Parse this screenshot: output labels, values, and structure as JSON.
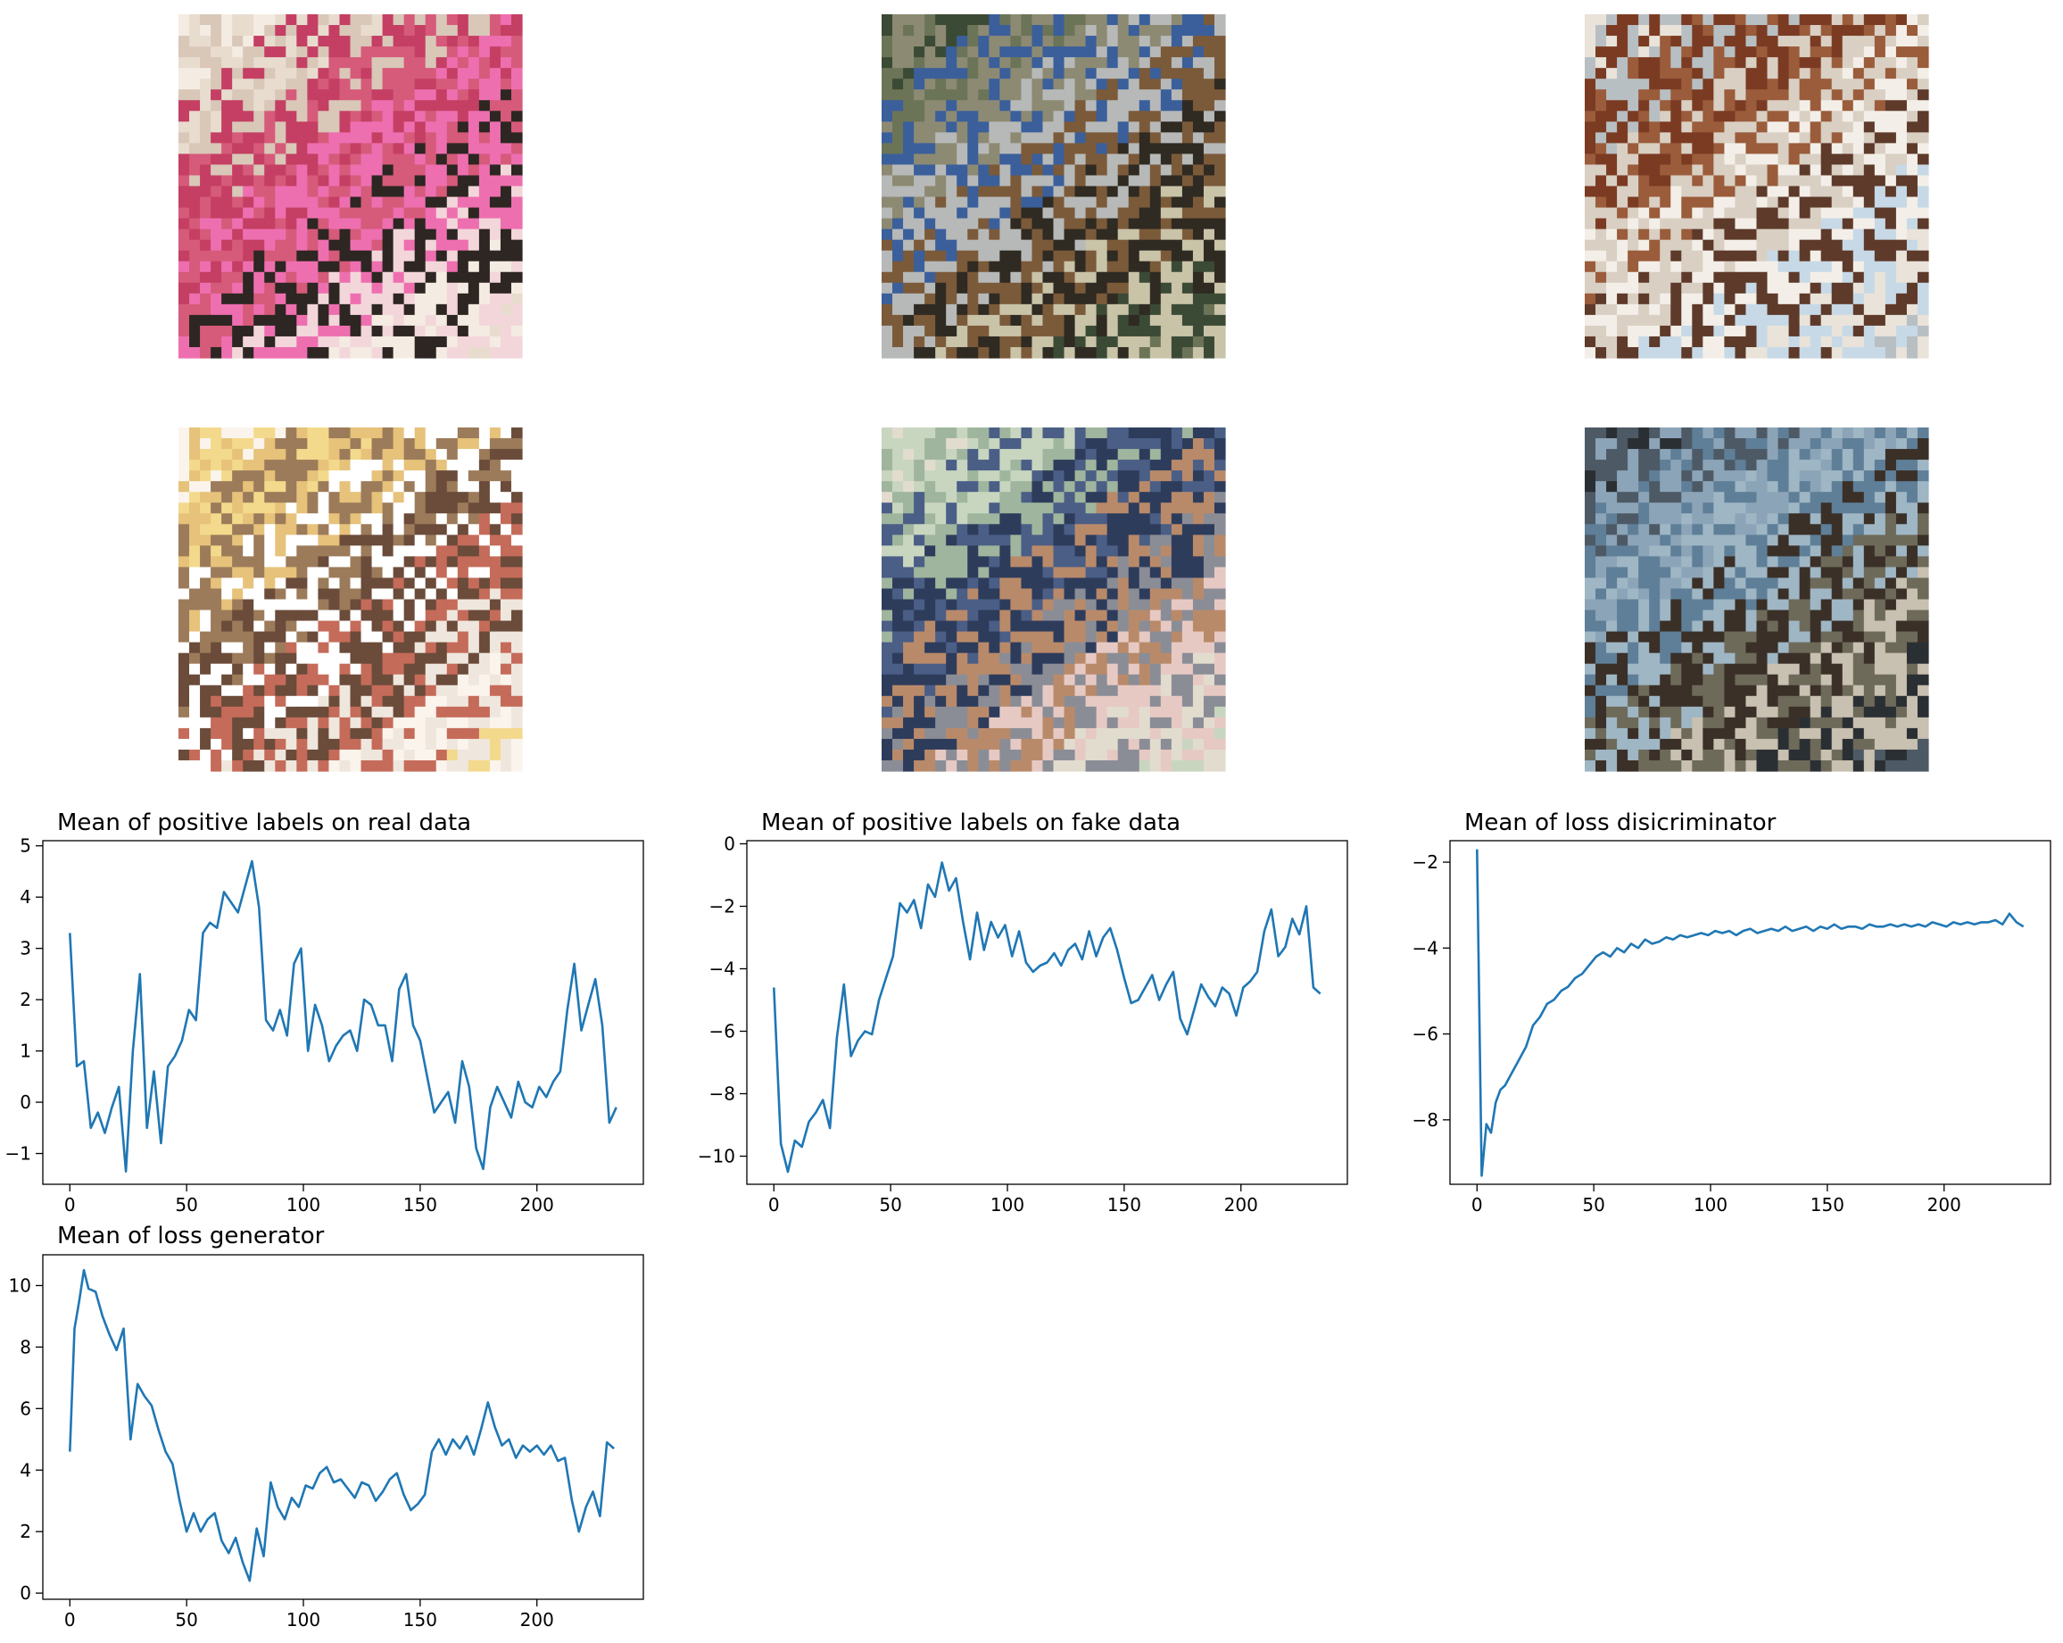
{
  "figure": {
    "images": [
      {
        "name": "generated-sample-1",
        "palette": [
          "#f4ece2",
          "#e8dccf",
          "#d9c7b8",
          "#c43f63",
          "#d65a7a",
          "#ee6fb0",
          "#2d2622",
          "#f3d6da"
        ]
      },
      {
        "name": "generated-sample-2",
        "palette": [
          "#3b4a35",
          "#6c7458",
          "#8d8a73",
          "#3a5f9b",
          "#b7b9b8",
          "#7b5a3a",
          "#2f2a22",
          "#c9c3a8"
        ]
      },
      {
        "name": "generated-sample-3",
        "palette": [
          "#e9e3da",
          "#b7bfc3",
          "#7b3b22",
          "#9a5c3b",
          "#d9cfc3",
          "#f3efe8",
          "#5e3a2a",
          "#c7d9e6"
        ]
      },
      {
        "name": "generated-sample-4",
        "palette": [
          "#fbf4ec",
          "#f3d98b",
          "#e6c27a",
          "#9c7b5a",
          "#ffffff",
          "#6b4b3a",
          "#c56b5a",
          "#efe7dd"
        ]
      },
      {
        "name": "generated-sample-5",
        "palette": [
          "#e2dccf",
          "#c8d6c0",
          "#9fb59d",
          "#4a5e86",
          "#2e3c5c",
          "#b98a6a",
          "#8a8d96",
          "#e7c9c4"
        ]
      },
      {
        "name": "generated-sample-6",
        "palette": [
          "#2a2f33",
          "#4d5a66",
          "#8ca4b8",
          "#5f7f98",
          "#9fb6c4",
          "#3a3028",
          "#6e6a5a",
          "#c8c0b0"
        ]
      }
    ]
  },
  "chart_data": [
    {
      "type": "line",
      "title": "Mean of positive labels on real data",
      "xlabel": "",
      "ylabel": "",
      "xlim": [
        0,
        234
      ],
      "ylim": [
        -1.6,
        5.1
      ],
      "xticks": [
        0,
        50,
        100,
        150,
        200
      ],
      "yticks": [
        -1,
        0,
        1,
        2,
        3,
        4,
        5
      ],
      "color": "#1f77b4",
      "series": [
        {
          "x": [
            0,
            3,
            6,
            9,
            12,
            15,
            18,
            21,
            24,
            27,
            30,
            33,
            36,
            39,
            42,
            45,
            48,
            51,
            54,
            57,
            60,
            63,
            66,
            69,
            72,
            75,
            78,
            81,
            84,
            87,
            90,
            93,
            96,
            99,
            102,
            105,
            108,
            111,
            114,
            117,
            120,
            123,
            126,
            129,
            132,
            135,
            138,
            141,
            144,
            147,
            150,
            153,
            156,
            159,
            162,
            165,
            168,
            171,
            174,
            177,
            180,
            183,
            186,
            189,
            192,
            195,
            198,
            201,
            204,
            207,
            210,
            213,
            216,
            219,
            222,
            225,
            228,
            231,
            234
          ],
          "y": [
            3.3,
            0.7,
            0.8,
            -0.5,
            -0.2,
            -0.6,
            -0.1,
            0.3,
            -1.35,
            1.0,
            2.5,
            -0.5,
            0.6,
            -0.8,
            0.7,
            0.9,
            1.2,
            1.8,
            1.6,
            3.3,
            3.5,
            3.4,
            4.1,
            3.9,
            3.7,
            4.2,
            4.7,
            3.8,
            1.6,
            1.4,
            1.8,
            1.3,
            2.7,
            3.0,
            1.0,
            1.9,
            1.5,
            0.8,
            1.1,
            1.3,
            1.4,
            1.0,
            2.0,
            1.9,
            1.5,
            1.5,
            0.8,
            2.2,
            2.5,
            1.5,
            1.2,
            0.5,
            -0.2,
            0.0,
            0.2,
            -0.4,
            0.8,
            0.3,
            -0.9,
            -1.3,
            -0.1,
            0.3,
            0.0,
            -0.3,
            0.4,
            0.0,
            -0.1,
            0.3,
            0.1,
            0.4,
            0.6,
            1.8,
            2.7,
            1.4,
            1.9,
            2.4,
            1.5,
            -0.4,
            -0.1
          ]
        }
      ]
    },
    {
      "type": "line",
      "title": "Mean of positive labels on fake data",
      "xlabel": "",
      "ylabel": "",
      "xlim": [
        0,
        234
      ],
      "ylim": [
        -10.9,
        0.1
      ],
      "xticks": [
        0,
        50,
        100,
        150,
        200
      ],
      "yticks": [
        -10,
        -8,
        -6,
        -4,
        -2,
        0
      ],
      "color": "#1f77b4",
      "series": [
        {
          "x": [
            0,
            3,
            6,
            9,
            12,
            15,
            18,
            21,
            24,
            27,
            30,
            33,
            36,
            39,
            42,
            45,
            48,
            51,
            54,
            57,
            60,
            63,
            66,
            69,
            72,
            75,
            78,
            81,
            84,
            87,
            90,
            93,
            96,
            99,
            102,
            105,
            108,
            111,
            114,
            117,
            120,
            123,
            126,
            129,
            132,
            135,
            138,
            141,
            144,
            147,
            150,
            153,
            156,
            159,
            162,
            165,
            168,
            171,
            174,
            177,
            180,
            183,
            186,
            189,
            192,
            195,
            198,
            201,
            204,
            207,
            210,
            213,
            216,
            219,
            222,
            225,
            228,
            231,
            234
          ],
          "y": [
            -4.6,
            -9.6,
            -10.5,
            -9.5,
            -9.7,
            -8.9,
            -8.6,
            -8.2,
            -9.1,
            -6.2,
            -4.5,
            -6.8,
            -6.3,
            -6.0,
            -6.1,
            -5.0,
            -4.3,
            -3.6,
            -1.9,
            -2.2,
            -1.8,
            -2.7,
            -1.3,
            -1.7,
            -0.6,
            -1.5,
            -1.1,
            -2.5,
            -3.7,
            -2.2,
            -3.4,
            -2.5,
            -3.0,
            -2.6,
            -3.6,
            -2.8,
            -3.8,
            -4.1,
            -3.9,
            -3.8,
            -3.5,
            -3.9,
            -3.4,
            -3.2,
            -3.7,
            -2.8,
            -3.6,
            -3.0,
            -2.7,
            -3.4,
            -4.3,
            -5.1,
            -5.0,
            -4.6,
            -4.2,
            -5.0,
            -4.5,
            -4.1,
            -5.6,
            -6.1,
            -5.3,
            -4.5,
            -4.9,
            -5.2,
            -4.6,
            -4.8,
            -5.5,
            -4.6,
            -4.4,
            -4.1,
            -2.8,
            -2.1,
            -3.6,
            -3.3,
            -2.4,
            -2.9,
            -2.0,
            -4.6,
            -4.8
          ]
        }
      ]
    },
    {
      "type": "line",
      "title": "Mean of loss disicriminator",
      "xlabel": "",
      "ylabel": "",
      "xlim": [
        0,
        234
      ],
      "ylim": [
        -9.5,
        -1.5
      ],
      "xticks": [
        0,
        50,
        100,
        150,
        200
      ],
      "yticks": [
        -8,
        -6,
        -4,
        -2
      ],
      "color": "#1f77b4",
      "series": [
        {
          "x": [
            0,
            2,
            4,
            6,
            8,
            10,
            12,
            15,
            18,
            21,
            24,
            27,
            30,
            33,
            36,
            39,
            42,
            45,
            48,
            51,
            54,
            57,
            60,
            63,
            66,
            69,
            72,
            75,
            78,
            81,
            84,
            87,
            90,
            93,
            96,
            99,
            102,
            105,
            108,
            111,
            114,
            117,
            120,
            123,
            126,
            129,
            132,
            135,
            138,
            141,
            144,
            147,
            150,
            153,
            156,
            159,
            162,
            165,
            168,
            171,
            174,
            177,
            180,
            183,
            186,
            189,
            192,
            195,
            198,
            201,
            204,
            207,
            210,
            213,
            216,
            219,
            222,
            225,
            228,
            231,
            234
          ],
          "y": [
            -1.7,
            -9.3,
            -8.1,
            -8.3,
            -7.6,
            -7.3,
            -7.2,
            -6.9,
            -6.6,
            -6.3,
            -5.8,
            -5.6,
            -5.3,
            -5.2,
            -5.0,
            -4.9,
            -4.7,
            -4.6,
            -4.4,
            -4.2,
            -4.1,
            -4.2,
            -4.0,
            -4.1,
            -3.9,
            -4.0,
            -3.8,
            -3.9,
            -3.85,
            -3.75,
            -3.8,
            -3.7,
            -3.75,
            -3.7,
            -3.65,
            -3.7,
            -3.6,
            -3.65,
            -3.6,
            -3.7,
            -3.6,
            -3.55,
            -3.65,
            -3.6,
            -3.55,
            -3.6,
            -3.5,
            -3.6,
            -3.55,
            -3.5,
            -3.6,
            -3.5,
            -3.55,
            -3.45,
            -3.55,
            -3.5,
            -3.5,
            -3.55,
            -3.45,
            -3.5,
            -3.5,
            -3.45,
            -3.5,
            -3.45,
            -3.5,
            -3.45,
            -3.5,
            -3.4,
            -3.45,
            -3.5,
            -3.4,
            -3.45,
            -3.4,
            -3.45,
            -3.4,
            -3.4,
            -3.35,
            -3.45,
            -3.2,
            -3.4,
            -3.5
          ]
        }
      ]
    },
    {
      "type": "line",
      "title": "Mean of loss generator",
      "xlabel": "",
      "ylabel": "",
      "xlim": [
        0,
        234
      ],
      "ylim": [
        -0.2,
        11.0
      ],
      "xticks": [
        0,
        50,
        100,
        150,
        200
      ],
      "yticks": [
        0,
        2,
        4,
        6,
        8,
        10
      ],
      "color": "#1f77b4",
      "series": [
        {
          "x": [
            0,
            2,
            4,
            6,
            8,
            11,
            14,
            17,
            20,
            23,
            26,
            29,
            32,
            35,
            38,
            41,
            44,
            47,
            50,
            53,
            56,
            59,
            62,
            65,
            68,
            71,
            74,
            77,
            80,
            83,
            86,
            89,
            92,
            95,
            98,
            101,
            104,
            107,
            110,
            113,
            116,
            119,
            122,
            125,
            128,
            131,
            134,
            137,
            140,
            143,
            146,
            149,
            152,
            155,
            158,
            161,
            164,
            167,
            170,
            173,
            176,
            179,
            182,
            185,
            188,
            191,
            194,
            197,
            200,
            203,
            206,
            209,
            212,
            215,
            218,
            221,
            224,
            227,
            230,
            233
          ],
          "y": [
            4.6,
            8.6,
            9.5,
            10.5,
            9.9,
            9.8,
            9.0,
            8.4,
            7.9,
            8.6,
            5.0,
            6.8,
            6.4,
            6.1,
            5.3,
            4.6,
            4.2,
            3.0,
            2.0,
            2.6,
            2.0,
            2.4,
            2.6,
            1.7,
            1.3,
            1.8,
            1.0,
            0.4,
            2.1,
            1.2,
            3.6,
            2.8,
            2.4,
            3.1,
            2.8,
            3.5,
            3.4,
            3.9,
            4.1,
            3.6,
            3.7,
            3.4,
            3.1,
            3.6,
            3.5,
            3.0,
            3.3,
            3.7,
            3.9,
            3.2,
            2.7,
            2.9,
            3.2,
            4.6,
            5.0,
            4.5,
            5.0,
            4.7,
            5.1,
            4.5,
            5.3,
            6.2,
            5.4,
            4.8,
            5.0,
            4.4,
            4.8,
            4.6,
            4.8,
            4.5,
            4.8,
            4.3,
            4.4,
            3.0,
            2.0,
            2.8,
            3.3,
            2.5,
            4.9,
            4.7
          ]
        }
      ]
    }
  ]
}
